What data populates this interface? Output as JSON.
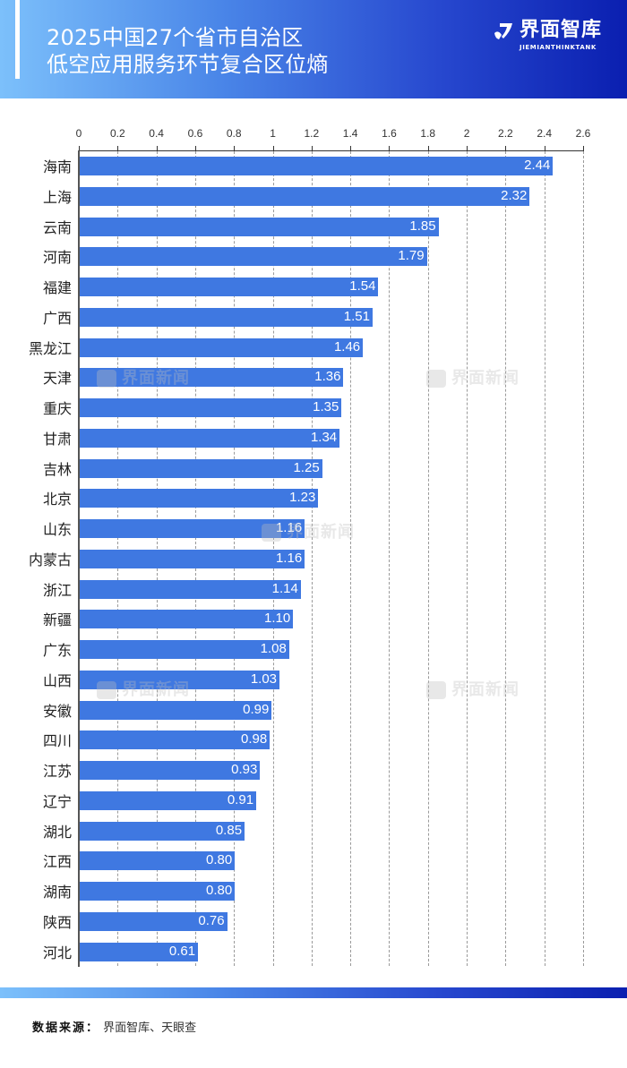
{
  "header": {
    "title_line1": "2025中国27个省市自治区",
    "title_line2": "低空应用服务环节复合区位熵",
    "logo_cn": "界面智库",
    "logo_en": "JIEMIANTHINKTANK"
  },
  "watermark": "界面新闻",
  "footer": {
    "source_label": "数据来源：",
    "source_text": "界面智库、天眼查"
  },
  "colors": {
    "bar": "#3f78e1",
    "header_gradient_start": "#7cc0fb",
    "header_gradient_end": "#0a1fb0"
  },
  "chart_data": {
    "type": "bar",
    "orientation": "horizontal",
    "title": "2025中国27个省市自治区低空应用服务环节复合区位熵",
    "xlabel": "",
    "ylabel": "",
    "xlim": [
      0,
      2.6
    ],
    "x_ticks": [
      "0",
      "0.2",
      "0.4",
      "0.6",
      "0.8",
      "1",
      "1.2",
      "1.4",
      "1.6",
      "1.8",
      "2",
      "2.2",
      "2.4",
      "2.6"
    ],
    "x_axis_position": "top",
    "grid": "vertical dashed",
    "legend": "none",
    "categories": [
      "海南",
      "上海",
      "云南",
      "河南",
      "福建",
      "广西",
      "黑龙江",
      "天津",
      "重庆",
      "甘肃",
      "吉林",
      "北京",
      "山东",
      "内蒙古",
      "浙江",
      "新疆",
      "广东",
      "山西",
      "安徽",
      "四川",
      "江苏",
      "辽宁",
      "湖北",
      "江西",
      "湖南",
      "陕西",
      "河北"
    ],
    "values": [
      2.44,
      2.32,
      1.85,
      1.79,
      1.54,
      1.51,
      1.46,
      1.36,
      1.35,
      1.34,
      1.25,
      1.23,
      1.16,
      1.16,
      1.14,
      1.1,
      1.08,
      1.03,
      0.99,
      0.98,
      0.93,
      0.91,
      0.85,
      0.8,
      0.8,
      0.76,
      0.61
    ],
    "value_labels": [
      "2.44",
      "2.32",
      "1.85",
      "1.79",
      "1.54",
      "1.51",
      "1.46",
      "1.36",
      "1.35",
      "1.34",
      "1.25",
      "1.23",
      "1.16",
      "1.16",
      "1.14",
      "1.10",
      "1.08",
      "1.03",
      "0.99",
      "0.98",
      "0.93",
      "0.91",
      "0.85",
      "0.80",
      "0.80",
      "0.76",
      "0.61"
    ]
  }
}
